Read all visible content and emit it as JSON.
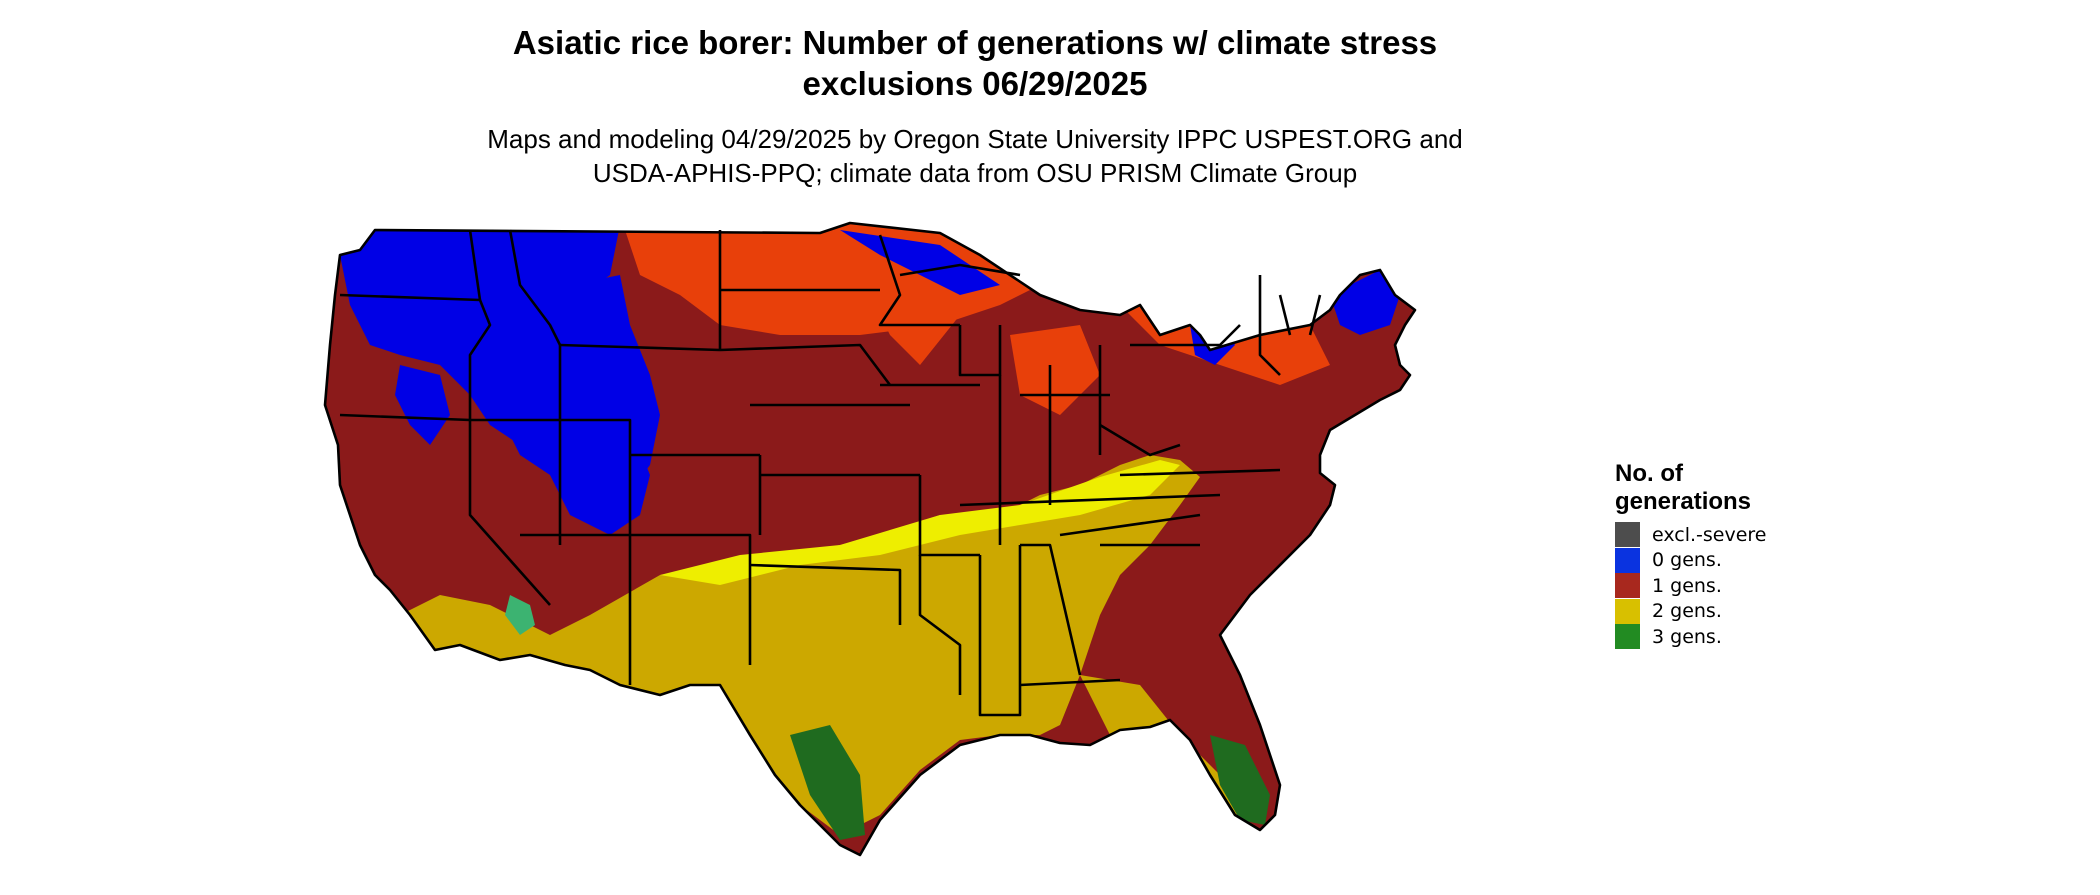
{
  "title": {
    "line1": "Asiatic rice borer: Number of generations w/ climate stress",
    "line2": "exclusions 06/29/2025"
  },
  "subtitle": {
    "line1": "Maps and modeling 04/29/2025 by Oregon State University IPPC USPEST.ORG and",
    "line2": "USDA-APHIS-PPQ; climate data from OSU PRISM Climate Group"
  },
  "legend": {
    "title_line1": "No. of",
    "title_line2": "generations",
    "items": [
      {
        "label": "excl.-severe",
        "color": "#4d4d4d"
      },
      {
        "label": "0 gens.",
        "color": "#0a33e0"
      },
      {
        "label": "1 gens.",
        "color": "#a8281e"
      },
      {
        "label": "2 gens.",
        "color": "#d8c000"
      },
      {
        "label": "3 gens.",
        "color": "#228b22"
      }
    ]
  },
  "map": {
    "region": "contiguous-us",
    "colors": {
      "gen0": "#0000e6",
      "gen1_dark": "#8b1a1a",
      "gen1_light": "#e8400a",
      "gen2": "#cca800",
      "gen2_bright": "#eeee00",
      "gen3": "#1f6b1f",
      "border": "#000000"
    }
  }
}
